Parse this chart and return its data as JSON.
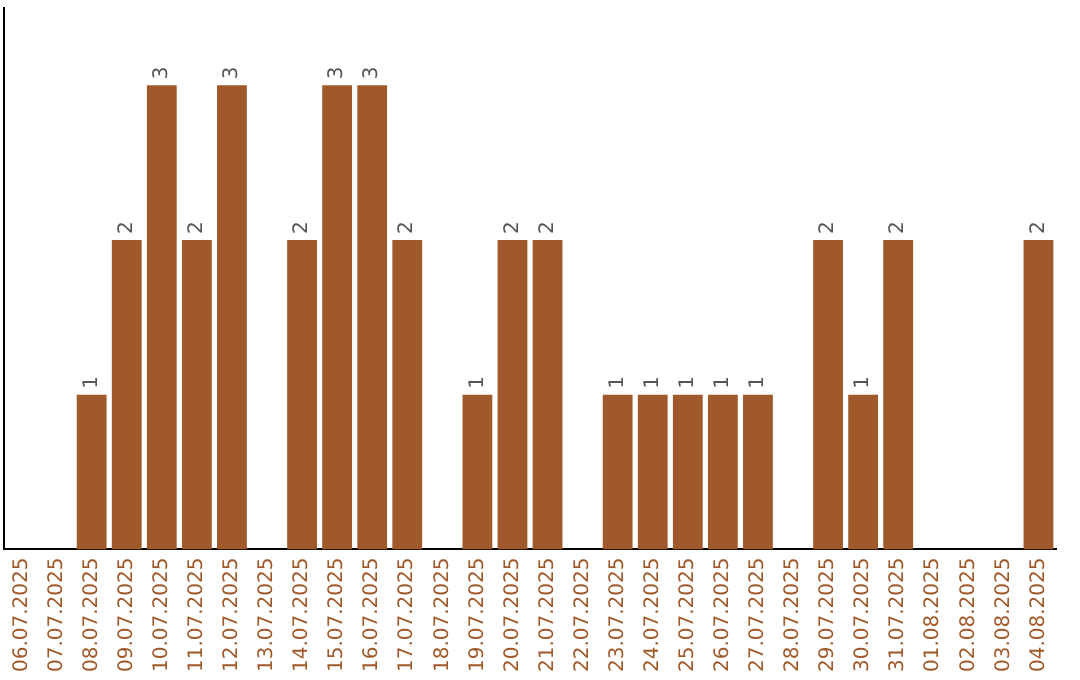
{
  "chart_data": {
    "type": "bar",
    "categories": [
      "06.07.2025",
      "07.07.2025",
      "08.07.2025",
      "09.07.2025",
      "10.07.2025",
      "11.07.2025",
      "12.07.2025",
      "13.07.2025",
      "14.07.2025",
      "15.07.2025",
      "16.07.2025",
      "17.07.2025",
      "18.07.2025",
      "19.07.2025",
      "20.07.2025",
      "21.07.2025",
      "22.07.2025",
      "23.07.2025",
      "24.07.2025",
      "25.07.2025",
      "26.07.2025",
      "27.07.2025",
      "28.07.2025",
      "29.07.2025",
      "30.07.2025",
      "31.07.2025",
      "01.08.2025",
      "02.08.2025",
      "03.08.2025",
      "04.08.2025"
    ],
    "values": [
      0,
      0,
      1,
      2,
      3,
      2,
      3,
      0,
      2,
      3,
      3,
      2,
      0,
      1,
      2,
      2,
      0,
      1,
      1,
      1,
      1,
      1,
      0,
      2,
      1,
      2,
      0,
      0,
      0,
      2
    ],
    "value_labels": [
      null,
      null,
      "1",
      "2",
      "3",
      "2",
      "3",
      null,
      "2",
      "3",
      "3",
      "2",
      null,
      "1",
      "2",
      "2",
      null,
      "1",
      "1",
      "1",
      "1",
      "1",
      null,
      "2",
      "1",
      "2",
      null,
      null,
      null,
      "2"
    ],
    "color": "#a0592a",
    "tick_labels": "x",
    "grid": false,
    "legend": false
  }
}
